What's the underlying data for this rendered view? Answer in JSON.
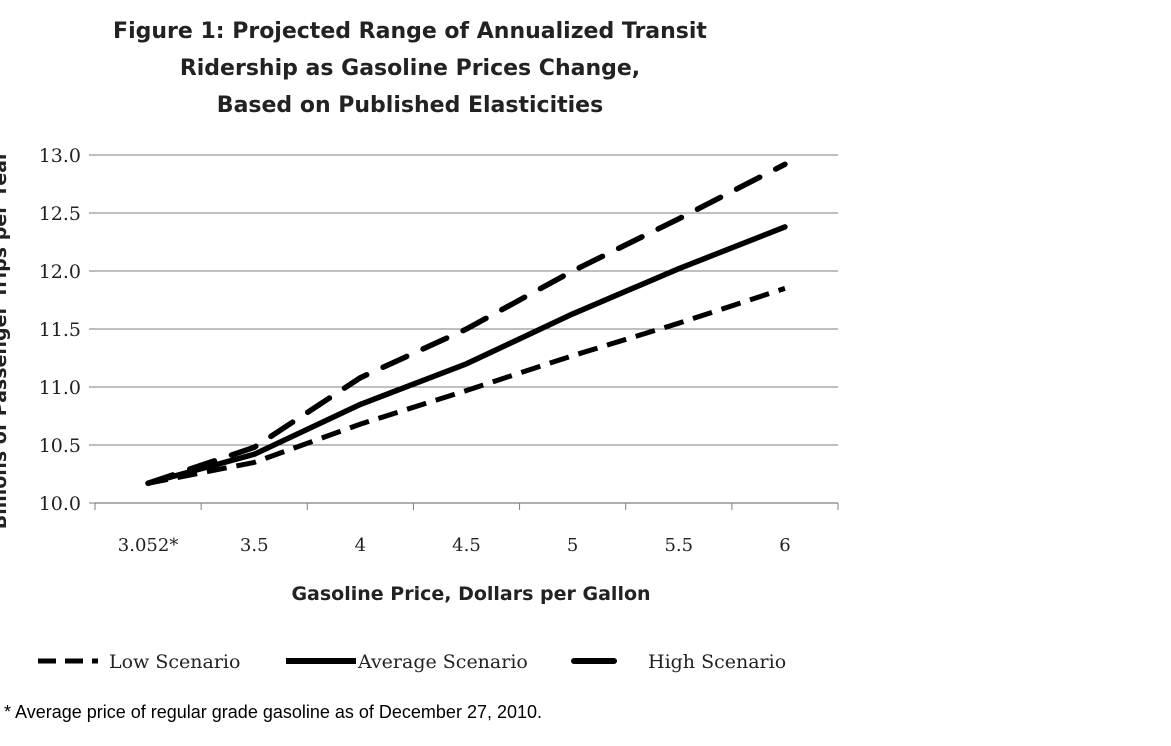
{
  "chart_data": {
    "type": "line",
    "title_lines": [
      "Figure 1: Projected Range of Annualized Transit",
      "Ridership as Gasoline Prices Change,",
      "Based on Published Elasticities"
    ],
    "xlabel": "Gasoline Price, Dollars per Gallon",
    "ylabel": "Billions of Passenger Trips per Year",
    "x": [
      3.052,
      3.5,
      4,
      4.5,
      5,
      5.5,
      6
    ],
    "x_tick_labels": [
      "3.052*",
      "3.5",
      "4",
      "4.5",
      "5",
      "5.5",
      "6"
    ],
    "y_tick_labels": [
      "10.0",
      "10.5",
      "11.0",
      "11.5",
      "12.0",
      "12.5",
      "13.0"
    ],
    "ylim": [
      10.0,
      13.0
    ],
    "grid": "horizontal",
    "legend_position": "bottom",
    "series": [
      {
        "name": "Low Scenario",
        "style": "dashed",
        "values": [
          10.17,
          10.35,
          10.68,
          10.97,
          11.27,
          11.55,
          11.85
        ]
      },
      {
        "name": "Average Scenario",
        "style": "solid",
        "values": [
          10.17,
          10.42,
          10.85,
          11.2,
          11.63,
          12.02,
          12.38
        ]
      },
      {
        "name": "High Scenario",
        "style": "dashed-long",
        "values": [
          10.17,
          10.48,
          11.08,
          11.5,
          12.0,
          12.45,
          12.92
        ]
      }
    ]
  },
  "footnote": "* Average price of regular grade gasoline as of December 27, 2010."
}
